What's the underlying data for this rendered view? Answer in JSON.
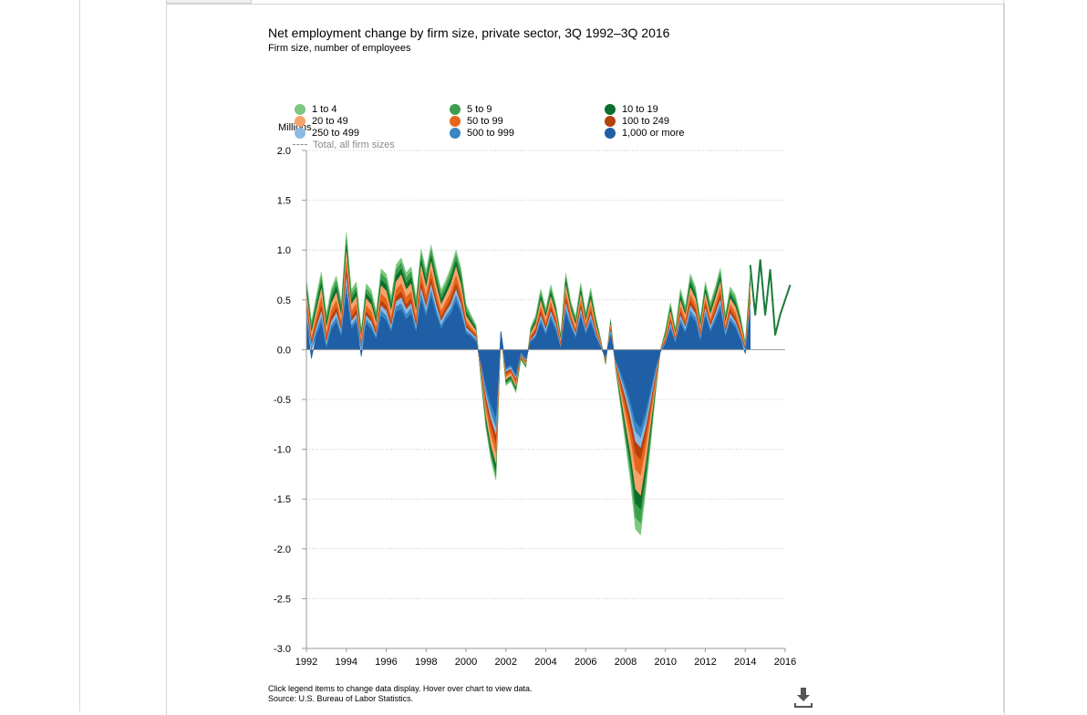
{
  "title": "Net employment change by firm size, private sector, 3Q 1992–3Q 2016",
  "subtitle": "Firm size, number of employees",
  "footer": {
    "instructions": "Click legend items to change data display. Hover over chart to view data.",
    "source": "Source: U.S. Bureau of Labor Statistics."
  },
  "chart_data": {
    "type": "area",
    "stacked": true,
    "title": "Net employment change by firm size, private sector, 3Q 1992–3Q 2016",
    "subtitle": "Firm size, number of employees",
    "ylabel": "Millions",
    "xlabel": "",
    "ylim": [
      -3.0,
      2.0
    ],
    "xlim": [
      1992,
      2016
    ],
    "yticks": [
      "2.0",
      "1.5",
      "1.0",
      "0.5",
      "0.0",
      "-0.5",
      "-1.0",
      "-1.5",
      "-2.0",
      "-2.5",
      "-3.0"
    ],
    "xticks": [
      "1992",
      "1994",
      "1996",
      "1998",
      "2000",
      "2002",
      "2004",
      "2006",
      "2008",
      "2010",
      "2012",
      "2014",
      "2016"
    ],
    "grid": true,
    "legend_position": "top",
    "x": [
      1992.0,
      1992.25,
      1992.5,
      1992.75,
      1993.0,
      1993.25,
      1993.5,
      1993.75,
      1994.0,
      1994.25,
      1994.5,
      1994.75,
      1995.0,
      1995.25,
      1995.5,
      1995.75,
      1996.0,
      1996.25,
      1996.5,
      1996.75,
      1997.0,
      1997.25,
      1997.5,
      1997.75,
      1998.0,
      1998.25,
      1998.5,
      1998.75,
      1999.0,
      1999.25,
      1999.5,
      1999.75,
      2000.0,
      2000.25,
      2000.5,
      2000.75,
      2001.0,
      2001.25,
      2001.5,
      2001.75,
      2002.0,
      2002.25,
      2002.5,
      2002.75,
      2003.0,
      2003.25,
      2003.5,
      2003.75,
      2004.0,
      2004.25,
      2004.5,
      2004.75,
      2005.0,
      2005.25,
      2005.5,
      2005.75,
      2006.0,
      2006.25,
      2006.5,
      2006.75,
      2007.0,
      2007.25,
      2007.5,
      2007.75,
      2008.0,
      2008.25,
      2008.5,
      2008.75,
      2009.0,
      2009.25,
      2009.5,
      2009.75,
      2010.0,
      2010.25,
      2010.5,
      2010.75,
      2011.0,
      2011.25,
      2011.5,
      2011.75,
      2012.0,
      2012.25,
      2012.5,
      2012.75,
      2013.0,
      2013.25,
      2013.5,
      2013.75,
      2014.0,
      2014.25
    ],
    "series": [
      {
        "name": "1,000 or more",
        "color": "#1f5fa6",
        "values": [
          0.29,
          -0.09,
          0.14,
          0.26,
          0.0,
          0.2,
          0.27,
          0.12,
          0.56,
          0.2,
          0.27,
          -0.07,
          0.26,
          0.2,
          0.1,
          0.34,
          0.29,
          0.17,
          0.38,
          0.4,
          0.3,
          0.36,
          0.16,
          0.49,
          0.32,
          0.53,
          0.35,
          0.2,
          0.3,
          0.36,
          0.48,
          0.35,
          0.16,
          0.13,
          0.08,
          -0.12,
          -0.36,
          -0.54,
          -0.68,
          0.18,
          -0.18,
          -0.15,
          -0.25,
          -0.02,
          -0.09,
          0.08,
          0.12,
          0.26,
          0.14,
          0.3,
          0.19,
          0.0,
          0.36,
          0.22,
          0.11,
          0.32,
          0.15,
          0.27,
          0.12,
          0.02,
          -0.07,
          0.14,
          -0.1,
          -0.22,
          -0.36,
          -0.52,
          -0.72,
          -0.78,
          -0.62,
          -0.4,
          -0.18,
          -0.02,
          0.05,
          0.2,
          0.06,
          0.26,
          0.16,
          0.34,
          0.28,
          0.08,
          0.33,
          0.17,
          0.28,
          0.4,
          0.12,
          0.28,
          0.22,
          0.1,
          -0.04,
          0.35
        ]
      },
      {
        "name": "500 to 999",
        "color": "#3a86c4",
        "values": [
          0.05,
          0.02,
          0.04,
          0.06,
          0.03,
          0.04,
          0.05,
          0.03,
          0.08,
          0.04,
          0.04,
          0.01,
          0.04,
          0.04,
          0.02,
          0.05,
          0.05,
          0.03,
          0.05,
          0.06,
          0.05,
          0.05,
          0.03,
          0.06,
          0.05,
          0.06,
          0.05,
          0.04,
          0.04,
          0.05,
          0.06,
          0.05,
          0.03,
          0.02,
          0.02,
          -0.02,
          -0.06,
          -0.08,
          -0.09,
          0.0,
          -0.02,
          -0.02,
          -0.02,
          -0.01,
          -0.01,
          0.01,
          0.02,
          0.04,
          0.03,
          0.04,
          0.03,
          0.01,
          0.05,
          0.03,
          0.02,
          0.04,
          0.02,
          0.04,
          0.02,
          0.01,
          -0.01,
          0.02,
          -0.01,
          -0.04,
          -0.06,
          -0.08,
          -0.1,
          -0.1,
          -0.08,
          -0.06,
          -0.03,
          0.0,
          0.01,
          0.03,
          0.01,
          0.04,
          0.03,
          0.05,
          0.04,
          0.02,
          0.04,
          0.03,
          0.04,
          0.05,
          0.02,
          0.04,
          0.03,
          0.02,
          0.0,
          0.05
        ]
      },
      {
        "name": "250 to 499",
        "color": "#8ab9e2",
        "values": [
          0.05,
          0.02,
          0.04,
          0.06,
          0.03,
          0.04,
          0.05,
          0.03,
          0.08,
          0.04,
          0.04,
          0.01,
          0.04,
          0.04,
          0.02,
          0.05,
          0.05,
          0.03,
          0.05,
          0.06,
          0.05,
          0.05,
          0.03,
          0.06,
          0.05,
          0.06,
          0.05,
          0.04,
          0.04,
          0.05,
          0.06,
          0.05,
          0.03,
          0.02,
          0.02,
          -0.02,
          -0.05,
          -0.07,
          -0.08,
          0.0,
          -0.02,
          -0.02,
          -0.02,
          -0.01,
          -0.01,
          0.01,
          0.02,
          0.04,
          0.03,
          0.04,
          0.03,
          0.01,
          0.05,
          0.03,
          0.02,
          0.04,
          0.02,
          0.04,
          0.02,
          0.01,
          -0.01,
          0.02,
          -0.01,
          -0.04,
          -0.06,
          -0.08,
          -0.1,
          -0.1,
          -0.08,
          -0.06,
          -0.03,
          0.0,
          0.01,
          0.03,
          0.01,
          0.04,
          0.03,
          0.05,
          0.04,
          0.02,
          0.04,
          0.03,
          0.04,
          0.05,
          0.02,
          0.04,
          0.03,
          0.02,
          0.0,
          0.05
        ]
      },
      {
        "name": "100 to 249",
        "color": "#b5410e",
        "values": [
          0.05,
          0.03,
          0.04,
          0.06,
          0.04,
          0.05,
          0.05,
          0.04,
          0.07,
          0.04,
          0.05,
          0.02,
          0.04,
          0.04,
          0.03,
          0.05,
          0.05,
          0.04,
          0.05,
          0.06,
          0.05,
          0.05,
          0.04,
          0.06,
          0.05,
          0.06,
          0.05,
          0.04,
          0.04,
          0.05,
          0.06,
          0.05,
          0.03,
          0.02,
          0.02,
          -0.02,
          -0.05,
          -0.07,
          -0.08,
          0.0,
          -0.02,
          -0.02,
          -0.02,
          -0.01,
          -0.01,
          0.02,
          0.03,
          0.04,
          0.03,
          0.04,
          0.03,
          0.02,
          0.05,
          0.03,
          0.02,
          0.04,
          0.02,
          0.04,
          0.02,
          0.01,
          -0.01,
          0.02,
          -0.01,
          -0.04,
          -0.07,
          -0.09,
          -0.12,
          -0.12,
          -0.09,
          -0.06,
          -0.03,
          0.0,
          0.02,
          0.03,
          0.02,
          0.04,
          0.03,
          0.05,
          0.04,
          0.03,
          0.04,
          0.03,
          0.04,
          0.05,
          0.03,
          0.04,
          0.04,
          0.03,
          0.01,
          0.05
        ]
      },
      {
        "name": "50 to 99",
        "color": "#e8641b",
        "values": [
          0.06,
          0.04,
          0.06,
          0.08,
          0.05,
          0.06,
          0.07,
          0.05,
          0.09,
          0.06,
          0.06,
          0.03,
          0.06,
          0.06,
          0.04,
          0.07,
          0.07,
          0.05,
          0.07,
          0.08,
          0.07,
          0.07,
          0.05,
          0.08,
          0.07,
          0.08,
          0.07,
          0.06,
          0.06,
          0.07,
          0.08,
          0.07,
          0.04,
          0.03,
          0.02,
          -0.03,
          -0.07,
          -0.09,
          -0.1,
          0.0,
          -0.03,
          -0.02,
          -0.03,
          -0.01,
          -0.01,
          0.02,
          0.03,
          0.05,
          0.04,
          0.05,
          0.04,
          0.02,
          0.06,
          0.04,
          0.03,
          0.05,
          0.03,
          0.05,
          0.03,
          0.01,
          -0.01,
          0.02,
          -0.02,
          -0.05,
          -0.09,
          -0.12,
          -0.16,
          -0.16,
          -0.12,
          -0.08,
          -0.04,
          0.0,
          0.02,
          0.04,
          0.02,
          0.05,
          0.04,
          0.06,
          0.05,
          0.03,
          0.05,
          0.04,
          0.05,
          0.06,
          0.03,
          0.05,
          0.05,
          0.04,
          0.01,
          0.06
        ]
      },
      {
        "name": "20 to 49",
        "color": "#f6a26b",
        "values": [
          0.07,
          0.05,
          0.07,
          0.09,
          0.06,
          0.07,
          0.08,
          0.06,
          0.1,
          0.07,
          0.07,
          0.04,
          0.07,
          0.07,
          0.05,
          0.08,
          0.08,
          0.06,
          0.08,
          0.09,
          0.08,
          0.08,
          0.06,
          0.09,
          0.08,
          0.09,
          0.08,
          0.07,
          0.07,
          0.08,
          0.09,
          0.08,
          0.05,
          0.04,
          0.03,
          -0.03,
          -0.08,
          -0.1,
          -0.11,
          0.0,
          -0.03,
          -0.03,
          -0.03,
          -0.01,
          -0.02,
          0.03,
          0.04,
          0.06,
          0.05,
          0.06,
          0.05,
          0.03,
          0.07,
          0.05,
          0.04,
          0.06,
          0.04,
          0.06,
          0.04,
          0.02,
          -0.01,
          0.03,
          -0.02,
          -0.06,
          -0.11,
          -0.15,
          -0.2,
          -0.2,
          -0.15,
          -0.1,
          -0.05,
          0.0,
          0.03,
          0.05,
          0.03,
          0.06,
          0.05,
          0.07,
          0.06,
          0.04,
          0.06,
          0.05,
          0.06,
          0.07,
          0.04,
          0.06,
          0.06,
          0.05,
          0.02,
          0.07
        ]
      },
      {
        "name": "10 to 19",
        "color": "#0b6e2c",
        "values": [
          0.05,
          0.04,
          0.05,
          0.06,
          0.05,
          0.05,
          0.06,
          0.05,
          0.07,
          0.05,
          0.05,
          0.03,
          0.05,
          0.05,
          0.04,
          0.06,
          0.06,
          0.05,
          0.06,
          0.06,
          0.06,
          0.06,
          0.05,
          0.06,
          0.06,
          0.06,
          0.06,
          0.05,
          0.05,
          0.06,
          0.06,
          0.06,
          0.04,
          0.03,
          0.02,
          -0.02,
          -0.05,
          -0.06,
          -0.07,
          0.0,
          -0.02,
          -0.02,
          -0.02,
          -0.01,
          -0.01,
          0.02,
          0.03,
          0.04,
          0.03,
          0.04,
          0.03,
          0.02,
          0.05,
          0.03,
          0.03,
          0.04,
          0.03,
          0.04,
          0.03,
          0.01,
          -0.01,
          0.02,
          -0.01,
          -0.04,
          -0.07,
          -0.1,
          -0.14,
          -0.14,
          -0.1,
          -0.07,
          -0.03,
          0.0,
          0.02,
          0.03,
          0.02,
          0.04,
          0.03,
          0.05,
          0.04,
          0.03,
          0.04,
          0.04,
          0.04,
          0.05,
          0.03,
          0.04,
          0.04,
          0.03,
          0.01,
          0.05
        ]
      },
      {
        "name": "5 to 9",
        "color": "#3c9f4e",
        "values": [
          0.05,
          0.04,
          0.05,
          0.06,
          0.05,
          0.05,
          0.06,
          0.05,
          0.07,
          0.05,
          0.05,
          0.03,
          0.05,
          0.05,
          0.04,
          0.06,
          0.06,
          0.05,
          0.06,
          0.06,
          0.06,
          0.06,
          0.05,
          0.06,
          0.06,
          0.06,
          0.06,
          0.05,
          0.05,
          0.06,
          0.06,
          0.06,
          0.04,
          0.03,
          0.02,
          -0.02,
          -0.04,
          -0.05,
          -0.06,
          0.0,
          -0.02,
          -0.02,
          -0.02,
          -0.01,
          -0.01,
          0.02,
          0.03,
          0.04,
          0.03,
          0.04,
          0.03,
          0.02,
          0.04,
          0.03,
          0.03,
          0.04,
          0.03,
          0.04,
          0.03,
          0.01,
          -0.01,
          0.02,
          -0.01,
          -0.04,
          -0.07,
          -0.1,
          -0.14,
          -0.14,
          -0.1,
          -0.07,
          -0.03,
          0.0,
          0.02,
          0.03,
          0.02,
          0.04,
          0.03,
          0.05,
          0.04,
          0.03,
          0.04,
          0.04,
          0.04,
          0.05,
          0.03,
          0.04,
          0.04,
          0.03,
          0.01,
          0.05
        ]
      },
      {
        "name": "1 to 4",
        "color": "#7dc77f",
        "values": [
          0.05,
          0.04,
          0.05,
          0.05,
          0.05,
          0.05,
          0.05,
          0.05,
          0.06,
          0.05,
          0.05,
          0.03,
          0.05,
          0.05,
          0.04,
          0.05,
          0.05,
          0.05,
          0.05,
          0.05,
          0.05,
          0.05,
          0.05,
          0.05,
          0.05,
          0.05,
          0.05,
          0.05,
          0.05,
          0.05,
          0.05,
          0.05,
          0.04,
          0.03,
          0.02,
          -0.02,
          -0.03,
          -0.04,
          -0.04,
          0.0,
          -0.02,
          -0.02,
          -0.02,
          -0.01,
          -0.01,
          0.02,
          0.03,
          0.04,
          0.03,
          0.04,
          0.03,
          0.02,
          0.04,
          0.03,
          0.03,
          0.04,
          0.03,
          0.04,
          0.03,
          0.01,
          -0.01,
          0.02,
          -0.01,
          -0.03,
          -0.06,
          -0.09,
          -0.12,
          -0.12,
          -0.09,
          -0.06,
          -0.03,
          0.0,
          0.02,
          0.03,
          0.02,
          0.04,
          0.03,
          0.04,
          0.04,
          0.03,
          0.04,
          0.04,
          0.04,
          0.04,
          0.03,
          0.04,
          0.04,
          0.03,
          0.01,
          0.04
        ]
      }
    ],
    "total_series": {
      "name": "Total, all firm sizes",
      "color": "#1a7a38",
      "x": [
        2014.25,
        2014.5,
        2014.75,
        2015.0,
        2015.25,
        2015.5,
        2015.75,
        2016.0,
        2016.25
      ],
      "values": [
        0.85,
        0.35,
        0.9,
        0.35,
        0.8,
        0.15,
        0.35,
        0.5,
        0.65
      ]
    },
    "legend": [
      {
        "label": "1 to 4",
        "color": "#7dc77f",
        "kind": "dot"
      },
      {
        "label": "5 to 9",
        "color": "#3c9f4e",
        "kind": "dot"
      },
      {
        "label": "10 to 19",
        "color": "#0b6e2c",
        "kind": "dot"
      },
      {
        "label": "20 to 49",
        "color": "#f6a26b",
        "kind": "dot"
      },
      {
        "label": "50 to 99",
        "color": "#e8641b",
        "kind": "dot"
      },
      {
        "label": "100 to 249",
        "color": "#b5410e",
        "kind": "dot"
      },
      {
        "label": "250 to 499",
        "color": "#8ab9e2",
        "kind": "dot"
      },
      {
        "label": "500 to 999",
        "color": "#3a86c4",
        "kind": "dot"
      },
      {
        "label": "1,000 or more",
        "color": "#1f5fa6",
        "kind": "dot"
      },
      {
        "label": "Total, all firm sizes",
        "color": "#8a8a8a",
        "kind": "dash"
      }
    ]
  },
  "icons": {
    "download": "download-icon"
  }
}
